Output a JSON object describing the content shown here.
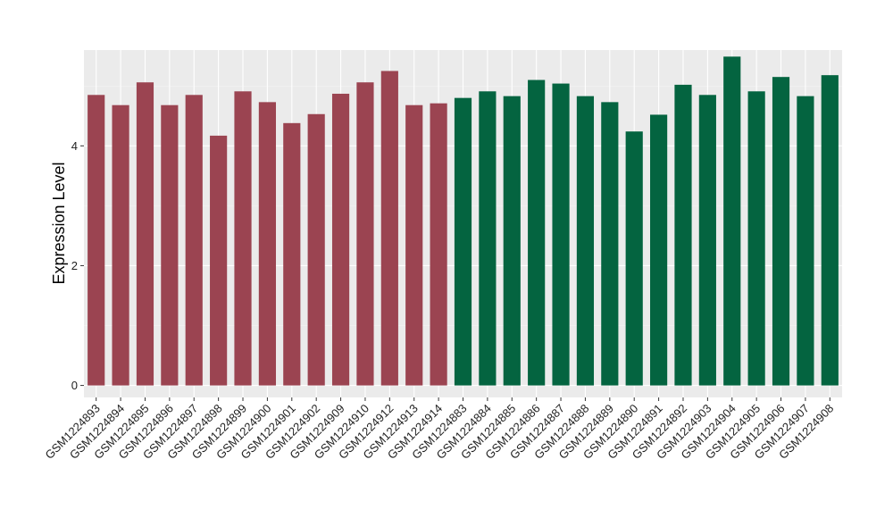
{
  "chart_data": {
    "type": "bar",
    "title": "",
    "xlabel": "",
    "ylabel": "Expression Level",
    "ylim": [
      -0.2,
      5.6
    ],
    "yticks": [
      0,
      2,
      4
    ],
    "grid": true,
    "background": "#EBEBEB",
    "categories": [
      "GSM1224893",
      "GSM1224894",
      "GSM1224895",
      "GSM1224896",
      "GSM1224897",
      "GSM1224898",
      "GSM1224899",
      "GSM1224900",
      "GSM1224901",
      "GSM1224902",
      "GSM1224909",
      "GSM1224910",
      "GSM1224912",
      "GSM1224913",
      "GSM1224914",
      "GSM1224883",
      "GSM1224884",
      "GSM1224885",
      "GSM1224886",
      "GSM1224887",
      "GSM1224888",
      "GSM1224889",
      "GSM1224890",
      "GSM1224891",
      "GSM1224892",
      "GSM1224903",
      "GSM1224904",
      "GSM1224905",
      "GSM1224906",
      "GSM1224907",
      "GSM1224908"
    ],
    "values": [
      4.85,
      4.68,
      5.06,
      4.68,
      4.85,
      4.17,
      4.91,
      4.73,
      4.38,
      4.53,
      4.87,
      5.06,
      5.25,
      4.68,
      4.71,
      4.8,
      4.91,
      4.83,
      5.1,
      5.04,
      4.83,
      4.73,
      4.24,
      4.52,
      5.02,
      4.85,
      5.49,
      4.91,
      5.15,
      4.83,
      5.18
    ],
    "groups": [
      0,
      0,
      0,
      0,
      0,
      0,
      0,
      0,
      0,
      0,
      0,
      0,
      0,
      0,
      0,
      1,
      1,
      1,
      1,
      1,
      1,
      1,
      1,
      1,
      1,
      1,
      1,
      1,
      1,
      1,
      1
    ],
    "group_colors": [
      "#9B4451",
      "#046440"
    ]
  }
}
